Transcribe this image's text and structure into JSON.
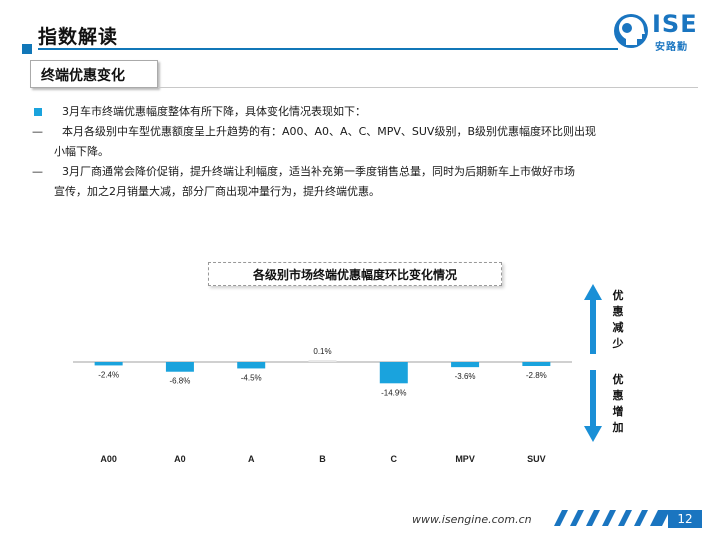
{
  "header": {
    "title": "指数解读",
    "logo_text": "ISE",
    "logo_sub": "安路勤"
  },
  "section": {
    "subtitle": "终端优惠变化"
  },
  "bullets": {
    "b1": "3月车市终端优惠幅度整体有所下降，具体变化情况表现如下：",
    "b2_line1": "本月各级别中车型优惠额度呈上升趋势的有：A00、A0、A、C、MPV、SUV级别，B级别优惠幅度环比则出现",
    "b2_line2": "小幅下降。",
    "b3_line1": "3月厂商通常会降价促销，提升终端让利幅度，适当补充第一季度销售总量，同时为后期新车上市做好市场",
    "b3_line2": "宣传，加之2月销量大减，部分厂商出现冲量行为，提升终端优惠。",
    "dash": "—"
  },
  "chart_data": {
    "type": "bar",
    "title": "各级别市场终端优惠幅度环比变化情况",
    "categories": [
      "A00",
      "A0",
      "A",
      "B",
      "C",
      "MPV",
      "SUV"
    ],
    "values": [
      -2.4,
      -6.8,
      -4.5,
      0.1,
      -14.9,
      -3.6,
      -2.8
    ],
    "value_labels": [
      "-2.4%",
      "-6.8%",
      "-4.5%",
      "0.1%",
      "-14.9%",
      "-3.6%",
      "-2.8%"
    ],
    "bar_color": "#1aa3dd",
    "bar_color_positive": "#e8e8e8",
    "up_label": "优惠减少",
    "down_label": "优惠增加",
    "arrow_color": "#1a8fd6"
  },
  "footer": {
    "url": "www.isengine.com.cn",
    "page": "12"
  }
}
